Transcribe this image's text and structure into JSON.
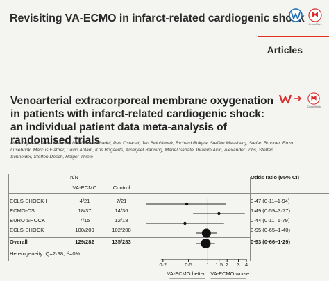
{
  "header": {
    "title": "Revisiting VA-ECMO in infarct-related cardiogenic shock",
    "section": "Articles",
    "crossmark_caption": "CrossMark",
    "colors": {
      "accent_red": "#e3301f",
      "icon_red": "#d92e2e",
      "icon_blue": "#1f6fb3"
    },
    "icons": [
      "oa-w-icon",
      "crossmark-icon",
      "publication-w-icon",
      "crossmark-icon"
    ]
  },
  "article": {
    "title": "Venoarterial extracorporeal membrane oxygenation in patients with infarct-related cardiogenic shock: an individual patient data meta-analysis of randomised trials",
    "authors": "Uwe Zeymer*, Anne Freund*, Matthias Hochadel, Petr Ostadal, Jan Belohlavek, Richard Rokyta, Steffen Massberg, Stefan Brunner, Enzo Lüsebrink, Marcus Flather, David Adlam, Kris Bogaerts, Amerjeet Banning, Manel Sabaté, Ibrahim Akin, Alexander Jobs, Steffen Schneider, Steffen Desch, Holger Thiele"
  },
  "forest_plot": {
    "nn_header": "n/N",
    "col_headers": [
      "VA-ECMO",
      "Control"
    ],
    "or_header": "Odds ratio (95% CI)",
    "rows": [
      {
        "study": "ECLS-SHOCK I",
        "ecmo": "4/21",
        "control": "7/21",
        "or_text": "0·47 (0·11–1·94)",
        "or": 0.47,
        "lo": 0.11,
        "hi": 1.94,
        "weight": "small"
      },
      {
        "study": "ECMO-CS",
        "ecmo": "18/37",
        "control": "14/36",
        "or_text": "1·49 (0·59–3·77)",
        "or": 1.49,
        "lo": 0.59,
        "hi": 3.77,
        "weight": "small"
      },
      {
        "study": "EURO SHOCK",
        "ecmo": "7/15",
        "control": "12/18",
        "or_text": "0·44 (0·11–1·79)",
        "or": 0.44,
        "lo": 0.11,
        "hi": 1.79,
        "weight": "small"
      },
      {
        "study": "ECLS-SHOCK",
        "ecmo": "100/209",
        "control": "102/208",
        "or_text": "0·95 (0·65–1·40)",
        "or": 0.95,
        "lo": 0.65,
        "hi": 1.4,
        "weight": "large"
      }
    ],
    "overall": {
      "study": "Overall",
      "ecmo": "129/282",
      "control": "135/283",
      "or_text": "0·93 (0·66–1·29)",
      "or": 0.93,
      "lo": 0.66,
      "hi": 1.29
    },
    "heterogeneity": "Heterogeneity: Q=2·98, I²=0%",
    "axis_ticks": [
      "0·2",
      "0·5",
      "1",
      "1·5",
      "2",
      "3",
      "4"
    ],
    "axis_tick_values": [
      0.2,
      0.5,
      1,
      1.5,
      2,
      3,
      4
    ],
    "favours_left": "VA-ECMO better",
    "favours_right": "VA-ECMO worse"
  }
}
